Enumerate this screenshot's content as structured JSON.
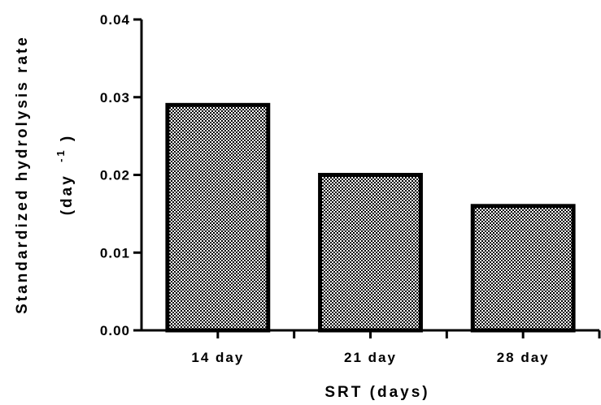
{
  "chart_data": {
    "type": "bar",
    "categories": [
      "14 day",
      "21 day",
      "28 day"
    ],
    "values": [
      0.029,
      0.02,
      0.016
    ],
    "xlabel": "SRT (days)",
    "ylabel_line1": "Standardized hydrolysis rate",
    "ylabel_line2_prefix": "(day",
    "ylabel_line2_exponent": "-1",
    "ylabel_line2_suffix": ")",
    "ylim": [
      0,
      0.04
    ],
    "yticks": [
      "0.00",
      "0.01",
      "0.02",
      "0.03",
      "0.04"
    ],
    "bar_pattern": "checkerboard",
    "bar_color": "#000000",
    "grid": false,
    "legend": "none"
  }
}
